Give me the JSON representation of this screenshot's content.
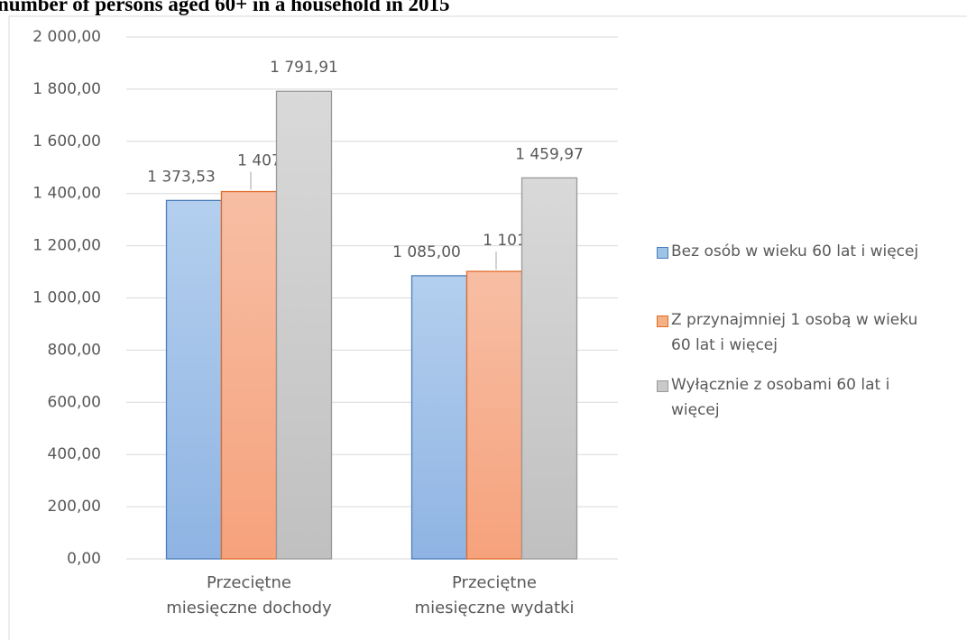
{
  "chart_data": {
    "type": "bar",
    "title": "number of persons aged 60+ in a household in 2015",
    "categories": [
      "Przeciętne miesięczne dochody",
      "Przeciętne miesięczne wydatki"
    ],
    "series": [
      {
        "name": "Bez osób w wieku 60 lat i więcej",
        "color": "#5b9bd5",
        "values": [
          1373.53,
          1085.0
        ],
        "value_labels": [
          "1 373,53",
          "1 085,00"
        ]
      },
      {
        "name": "Z przynajmniej 1 osobą w wieku 60 lat i więcej",
        "color": "#ed7d31",
        "values": [
          1407.47,
          1101.65
        ],
        "value_labels": [
          "1 407,47",
          "1 101,65"
        ]
      },
      {
        "name": "Wyłącznie z osobami 60 lat i więcej",
        "color": "#a5a5a5",
        "values": [
          1791.91,
          1459.97
        ],
        "value_labels": [
          "1 791,91",
          "1 459,97"
        ]
      }
    ],
    "ylim": [
      0,
      2000
    ],
    "yticks": [
      {
        "value": 0,
        "label": "0,00"
      },
      {
        "value": 200,
        "label": "200,00"
      },
      {
        "value": 400,
        "label": "400,00"
      },
      {
        "value": 600,
        "label": "600,00"
      },
      {
        "value": 800,
        "label": "800,00"
      },
      {
        "value": 1000,
        "label": "1 000,00"
      },
      {
        "value": 1200,
        "label": "1 200,00"
      },
      {
        "value": 1400,
        "label": "1 400,00"
      },
      {
        "value": 1600,
        "label": "1 600,00"
      },
      {
        "value": 1800,
        "label": "1 800,00"
      },
      {
        "value": 2000,
        "label": "2 000,00"
      }
    ],
    "grid": true,
    "legend": "right"
  }
}
